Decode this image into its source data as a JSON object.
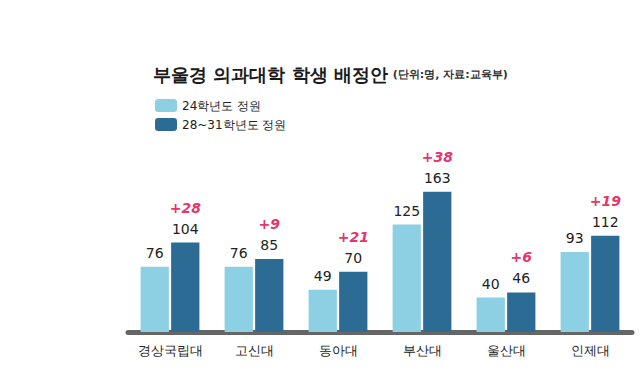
{
  "chart_data": {
    "type": "bar",
    "title": "부울경 의과대학 학생 배정안",
    "subtitle": "(단위:명, 자료:교육부)",
    "categories": [
      "경상국립대",
      "고신대",
      "동아대",
      "부산대",
      "울산대",
      "인제대"
    ],
    "series": [
      {
        "name": "24학년도 정원",
        "color": "#8ed0e3",
        "values": [
          76,
          76,
          49,
          125,
          40,
          93
        ]
      },
      {
        "name": "28~31학년도 정원",
        "color": "#2b6b94",
        "values": [
          104,
          85,
          70,
          163,
          46,
          112
        ]
      }
    ],
    "annotations": [
      "+28",
      "+9",
      "+21",
      "+38",
      "+6",
      "+19"
    ],
    "ylim": [
      0,
      200
    ],
    "grid": false,
    "legend": "upper left",
    "data_labels": true,
    "tick_labels": "x"
  }
}
